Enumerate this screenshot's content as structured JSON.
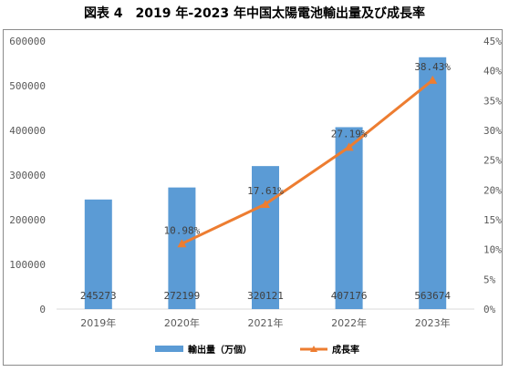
{
  "title": "図表 4　2019 年-2023 年中国太陽電池輸出量及び成長率",
  "chart_data": {
    "type": "bar",
    "categories": [
      "2019年",
      "2020年",
      "2021年",
      "2022年",
      "2023年"
    ],
    "series": [
      {
        "name": "輸出量（万個）",
        "type": "bar",
        "axis": "left",
        "color": "#5b9bd5",
        "values": [
          245273,
          272199,
          320121,
          407176,
          563674
        ],
        "labels": [
          "245273",
          "272199",
          "320121",
          "407176",
          "563674"
        ]
      },
      {
        "name": "成長率",
        "type": "line",
        "axis": "right",
        "color": "#ed7d31",
        "values": [
          null,
          10.98,
          17.61,
          27.19,
          38.43
        ],
        "labels": [
          "",
          "10.98%",
          "17.61%",
          "27.19%",
          "38.43%"
        ]
      }
    ],
    "y_left": {
      "min": 0,
      "max": 600000,
      "step": 100000,
      "ticks": [
        "0",
        "100000",
        "200000",
        "300000",
        "400000",
        "500000",
        "600000"
      ]
    },
    "y_right": {
      "min": 0,
      "max": 45,
      "step": 5,
      "ticks": [
        "0%",
        "5%",
        "10%",
        "15%",
        "20%",
        "25%",
        "30%",
        "35%",
        "40%",
        "45%"
      ]
    },
    "grid": false,
    "legend": "bottom"
  }
}
